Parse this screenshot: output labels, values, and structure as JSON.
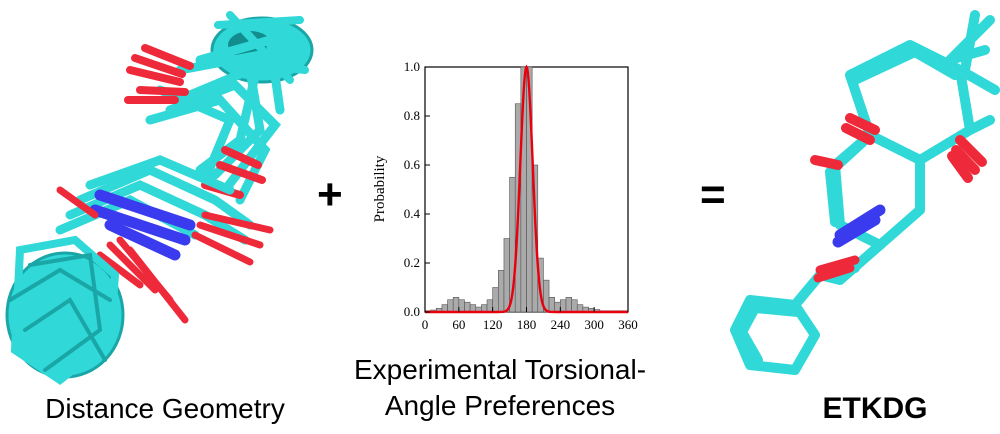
{
  "captions": {
    "left": "Distance Geometry",
    "middle_line1": "Experimental Torsional-",
    "middle_line2": "Angle Preferences",
    "right": "ETKDG"
  },
  "operators": {
    "plus": "+",
    "equals": "="
  },
  "colors": {
    "carbon": "#30d8d8",
    "oxygen": "#ee2a3a",
    "nitrogen": "#3a3aee",
    "histogram_bar": "#aaaaaa",
    "fit_curve": "#e8000f"
  },
  "chart_data": {
    "type": "bar",
    "ylabel": "Probability",
    "xlabel": "",
    "xlim": [
      0,
      360
    ],
    "ylim": [
      0.0,
      1.0
    ],
    "x_ticks": [
      "0",
      "60",
      "120",
      "180",
      "240",
      "300",
      "360"
    ],
    "y_ticks": [
      "0.0",
      "0.2",
      "0.4",
      "0.6",
      "0.8",
      "1.0"
    ],
    "bin_width": 10,
    "bin_centers": [
      5,
      15,
      25,
      35,
      45,
      55,
      65,
      75,
      85,
      95,
      105,
      115,
      125,
      135,
      145,
      155,
      165,
      175,
      185,
      195,
      205,
      215,
      225,
      235,
      245,
      255,
      265,
      275,
      285,
      295,
      305,
      315,
      325,
      335,
      345,
      355
    ],
    "histogram": [
      0.005,
      0.008,
      0.015,
      0.03,
      0.05,
      0.06,
      0.05,
      0.04,
      0.03,
      0.02,
      0.03,
      0.05,
      0.1,
      0.17,
      0.3,
      0.55,
      0.85,
      1.0,
      1.0,
      0.6,
      0.22,
      0.13,
      0.06,
      0.04,
      0.05,
      0.06,
      0.05,
      0.03,
      0.02,
      0.015,
      0.01,
      0.005,
      0.005,
      0.005,
      0.005,
      0.005
    ],
    "fit_curve": {
      "type": "gaussian",
      "peak_x": 180,
      "peak_y": 1.0,
      "sigma": 11
    }
  }
}
